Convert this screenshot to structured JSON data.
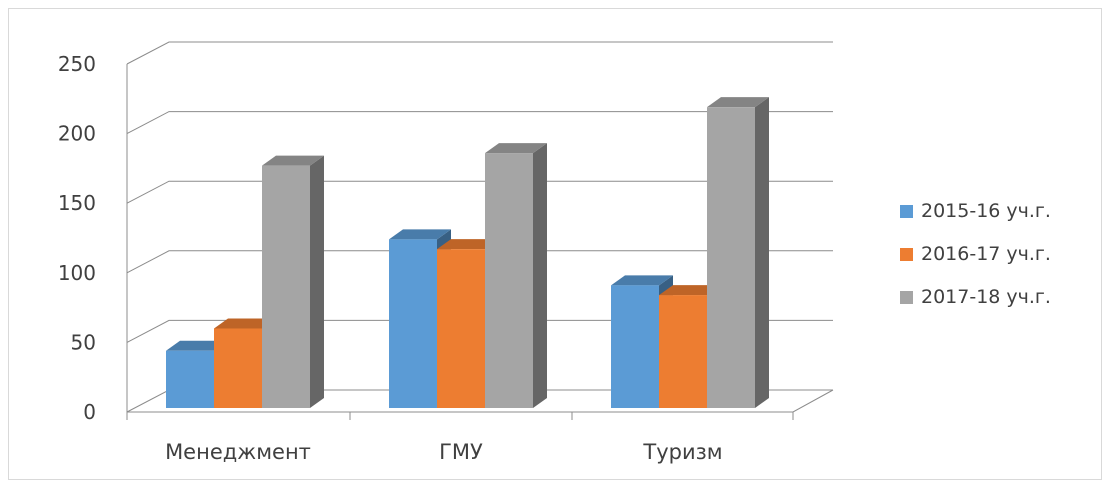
{
  "chart_data": {
    "type": "bar",
    "title": "",
    "xlabel": "",
    "ylabel": "",
    "categories": [
      "Менеджмент",
      "ГМУ",
      "Туризм"
    ],
    "series": [
      {
        "name": "2015-16 уч.г.",
        "color": "#5b9bd5",
        "values": [
          44,
          124,
          91
        ]
      },
      {
        "name": "2016-17 уч.г.",
        "color": "#ed7d31",
        "values": [
          60,
          117,
          84
        ]
      },
      {
        "name": "2017-18 уч.г.",
        "color": "#a5a5a5",
        "values": [
          177,
          186,
          219
        ]
      }
    ],
    "ylim": [
      0,
      250
    ],
    "yticks": [
      "0",
      "50",
      "100",
      "150",
      "200",
      "250"
    ],
    "grid": true,
    "style": "3d-clustered-column",
    "legend_position": "right"
  }
}
